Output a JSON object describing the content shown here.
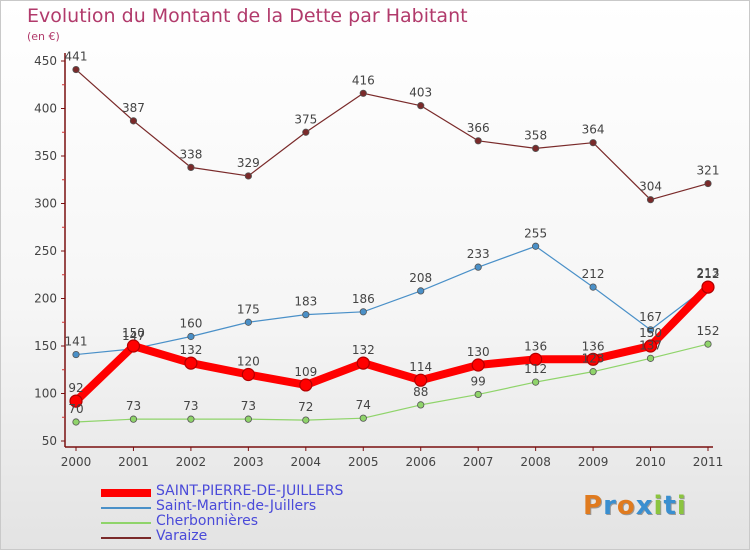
{
  "title": "Evolution du Montant de la Dette par Habitant",
  "subtitle": "(en €)",
  "logo": {
    "text": "Proxiti",
    "letter_colors": [
      "#e07b1f",
      "#3a8fd0",
      "#e07b1f",
      "#3a8fd0",
      "#8bc43f",
      "#3a8fd0",
      "#8bc43f"
    ]
  },
  "chart_data": {
    "type": "line",
    "x": [
      "2000",
      "2001",
      "2002",
      "2003",
      "2004",
      "2005",
      "2006",
      "2007",
      "2008",
      "2009",
      "2010",
      "2011"
    ],
    "ylim": [
      50,
      450
    ],
    "yticks": [
      50,
      100,
      150,
      200,
      250,
      300,
      350,
      400,
      450
    ],
    "grid": false,
    "legend_position": "bottom-left",
    "series": [
      {
        "name": "Varaize",
        "color": "#7a2a2a",
        "style": "thin",
        "values": [
          441,
          387,
          338,
          329,
          375,
          416,
          403,
          366,
          358,
          364,
          304,
          321
        ]
      },
      {
        "name": "Saint-Martin-de-Juillers",
        "color": "#4a90c8",
        "style": "thin",
        "values": [
          141,
          147,
          160,
          175,
          183,
          186,
          208,
          233,
          255,
          212,
          167,
          213
        ]
      },
      {
        "name": "Cherbonnières",
        "color": "#8fd46a",
        "style": "thin",
        "values": [
          70,
          73,
          73,
          73,
          72,
          74,
          88,
          99,
          112,
          123,
          137,
          152
        ]
      },
      {
        "name": "SAINT-PIERRE-DE-JUILLERS",
        "color": "#ff0000",
        "style": "thick",
        "values": [
          92,
          150,
          132,
          120,
          109,
          132,
          114,
          130,
          136,
          136,
          150,
          212
        ]
      }
    ],
    "legend_order": [
      "SAINT-PIERRE-DE-JUILLERS",
      "Saint-Martin-de-Juillers",
      "Cherbonnières",
      "Varaize"
    ]
  }
}
